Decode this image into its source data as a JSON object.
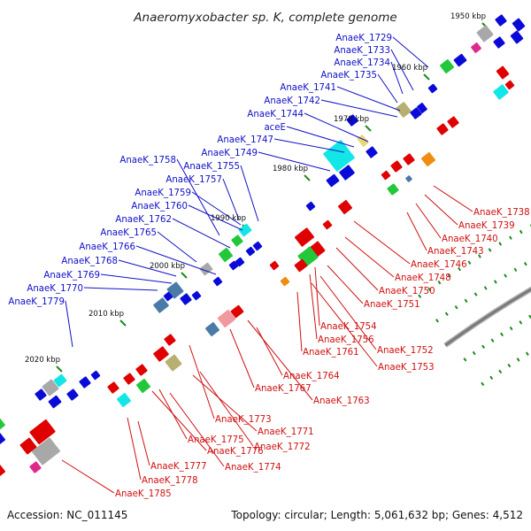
{
  "title": "Anaeromyxobacter sp. K, complete genome",
  "footer": {
    "accession": "Accession: NC_011145",
    "summary": "Topology: circular; Length: 5,061,632 bp; Genes: 4,512"
  },
  "colors": {
    "forward_label": "#1010c8",
    "reverse_label": "#d01010",
    "backbone": "#7a7a7a",
    "tick": "#1e8a1e",
    "forward_gene": "#0a0ad8",
    "reverse_gene": "#e00000"
  },
  "ticks": [
    {
      "label": "1950 kbp"
    },
    {
      "label": "1960 kbp"
    },
    {
      "label": "1970 kbp"
    },
    {
      "label": "1980 kbp"
    },
    {
      "label": "1990 kbp"
    },
    {
      "label": "2000 kbp"
    },
    {
      "label": "2010 kbp"
    },
    {
      "label": "2020 kbp"
    }
  ],
  "forward_labels": [
    "AnaeK_1729",
    "AnaeK_1733",
    "AnaeK_1734",
    "AnaeK_1735",
    "AnaeK_1741",
    "AnaeK_1742",
    "AnaeK_1744",
    "aceE",
    "AnaeK_1747",
    "AnaeK_1749",
    "AnaeK_1758",
    "AnaeK_1755",
    "AnaeK_1757",
    "AnaeK_1759",
    "AnaeK_1760",
    "AnaeK_1762",
    "AnaeK_1765",
    "AnaeK_1766",
    "AnaeK_1768",
    "AnaeK_1769",
    "AnaeK_1770",
    "AnaeK_1779"
  ],
  "reverse_labels": [
    "AnaeK_1738",
    "AnaeK_1739",
    "AnaeK_1740",
    "AnaeK_1743",
    "AnaeK_1746",
    "AnaeK_1748",
    "AnaeK_1750",
    "AnaeK_1751",
    "AnaeK_1754",
    "AnaeK_1756",
    "AnaeK_1752",
    "AnaeK_1761",
    "AnaeK_1753",
    "AnaeK_1764",
    "AnaeK_1767",
    "AnaeK_1763",
    "AnaeK_1773",
    "AnaeK_1771",
    "AnaeK_1775",
    "AnaeK_1772",
    "AnaeK_1776",
    "AnaeK_1774",
    "AnaeK_1777",
    "AnaeK_1778",
    "AnaeK_1785"
  ]
}
